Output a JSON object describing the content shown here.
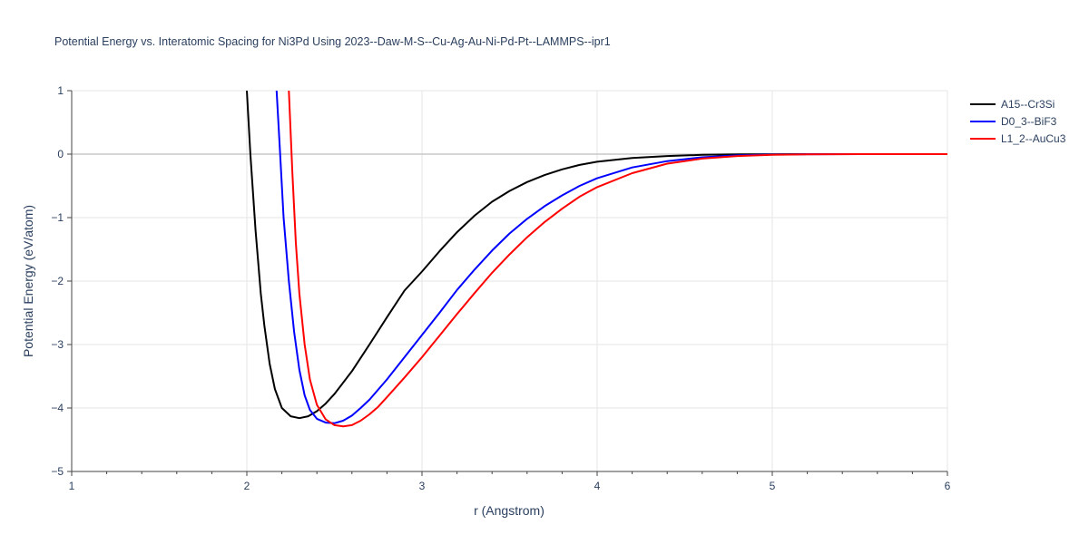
{
  "chart_data": {
    "type": "line",
    "title": "Potential Energy vs. Interatomic Spacing for Ni3Pd Using 2023--Daw-M-S--Cu-Ag-Au-Ni-Pd-Pt--LAMMPS--ipr1",
    "xlabel": "r (Angstrom)",
    "ylabel": "Potential Energy (eV/atom)",
    "xlim": [
      1,
      6
    ],
    "ylim": [
      -5,
      1
    ],
    "x_ticks": [
      1,
      2,
      3,
      4,
      5,
      6
    ],
    "x_tick_labels": [
      "1",
      "2",
      "3",
      "4",
      "5",
      "6"
    ],
    "y_ticks": [
      -5,
      -4,
      -3,
      -2,
      -1,
      0,
      1
    ],
    "y_tick_labels": [
      "−5",
      "−4",
      "−3",
      "−2",
      "−1",
      "0",
      "1"
    ],
    "grid": true,
    "legend_position": "top-right",
    "series": [
      {
        "name": "A15--Cr3Si",
        "color": "#000000",
        "x": [
          2.0,
          2.02,
          2.05,
          2.08,
          2.1,
          2.13,
          2.16,
          2.2,
          2.25,
          2.3,
          2.35,
          2.4,
          2.45,
          2.5,
          2.6,
          2.7,
          2.8,
          2.9,
          3.0,
          3.1,
          3.2,
          3.3,
          3.4,
          3.5,
          3.6,
          3.7,
          3.8,
          3.9,
          4.0,
          4.2,
          4.4,
          4.6,
          4.8,
          5.0,
          5.2,
          5.5,
          6.0
        ],
        "y": [
          1.0,
          0.0,
          -1.2,
          -2.2,
          -2.7,
          -3.3,
          -3.7,
          -4.0,
          -4.13,
          -4.16,
          -4.13,
          -4.05,
          -3.93,
          -3.78,
          -3.42,
          -3.0,
          -2.57,
          -2.15,
          -1.85,
          -1.53,
          -1.23,
          -0.97,
          -0.75,
          -0.58,
          -0.44,
          -0.33,
          -0.24,
          -0.17,
          -0.12,
          -0.06,
          -0.03,
          -0.012,
          -0.005,
          -0.002,
          0.0,
          0.0,
          0.0
        ]
      },
      {
        "name": "D0_3--BiF3",
        "color": "#0000ff",
        "x": [
          2.17,
          2.19,
          2.21,
          2.24,
          2.27,
          2.3,
          2.33,
          2.36,
          2.4,
          2.45,
          2.5,
          2.55,
          2.6,
          2.65,
          2.7,
          2.8,
          2.9,
          3.0,
          3.1,
          3.2,
          3.3,
          3.4,
          3.5,
          3.6,
          3.7,
          3.8,
          3.9,
          4.0,
          4.2,
          4.4,
          4.6,
          4.8,
          5.0,
          5.2,
          5.5,
          6.0
        ],
        "y": [
          1.0,
          0.0,
          -1.0,
          -2.0,
          -2.8,
          -3.4,
          -3.8,
          -4.03,
          -4.17,
          -4.23,
          -4.24,
          -4.2,
          -4.12,
          -4.0,
          -3.87,
          -3.55,
          -3.2,
          -2.85,
          -2.5,
          -2.14,
          -1.82,
          -1.52,
          -1.25,
          -1.02,
          -0.82,
          -0.65,
          -0.5,
          -0.38,
          -0.21,
          -0.11,
          -0.05,
          -0.02,
          -0.007,
          -0.002,
          0.0,
          0.0
        ]
      },
      {
        "name": "L1_2--AuCu3",
        "color": "#ff0000",
        "x": [
          2.24,
          2.26,
          2.28,
          2.3,
          2.33,
          2.36,
          2.4,
          2.45,
          2.5,
          2.55,
          2.6,
          2.65,
          2.7,
          2.75,
          2.8,
          2.9,
          3.0,
          3.1,
          3.2,
          3.3,
          3.4,
          3.5,
          3.6,
          3.7,
          3.8,
          3.9,
          4.0,
          4.2,
          4.4,
          4.6,
          4.8,
          5.0,
          5.2,
          5.5,
          6.0
        ],
        "y": [
          1.0,
          -0.3,
          -1.4,
          -2.2,
          -3.0,
          -3.55,
          -3.95,
          -4.18,
          -4.27,
          -4.29,
          -4.27,
          -4.2,
          -4.1,
          -3.98,
          -3.83,
          -3.52,
          -3.2,
          -2.86,
          -2.52,
          -2.19,
          -1.87,
          -1.58,
          -1.31,
          -1.07,
          -0.86,
          -0.67,
          -0.52,
          -0.3,
          -0.15,
          -0.07,
          -0.03,
          -0.01,
          -0.003,
          0.0,
          0.0
        ]
      }
    ]
  }
}
